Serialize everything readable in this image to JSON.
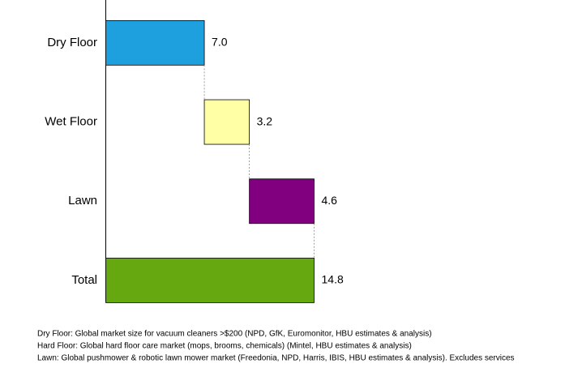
{
  "chart_data": {
    "type": "waterfall",
    "orientation": "horizontal",
    "categories": [
      "Dry Floor",
      "Wet Floor",
      "Lawn",
      "Total"
    ],
    "values": [
      7.0,
      3.2,
      4.6,
      14.8
    ],
    "value_labels": [
      "7.0",
      "3.2",
      "4.6",
      "14.8"
    ],
    "colors": [
      "#1fa0de",
      "#ffffa6",
      "#800080",
      "#66a80f"
    ],
    "footnotes": [
      "Dry Floor: Global market size for vacuum cleaners >$200 (NPD, GfK, Euromonitor, HBU estimates & analysis)",
      "Hard Floor: Global hard floor care market (mops, brooms, chemicals) (Mintel, HBU estimates & analysis)",
      "Lawn: Global pushmower & robotic lawn mower market (Freedonia, NPD, Harris, IBIS, HBU estimates & analysis).  Excludes services"
    ]
  }
}
